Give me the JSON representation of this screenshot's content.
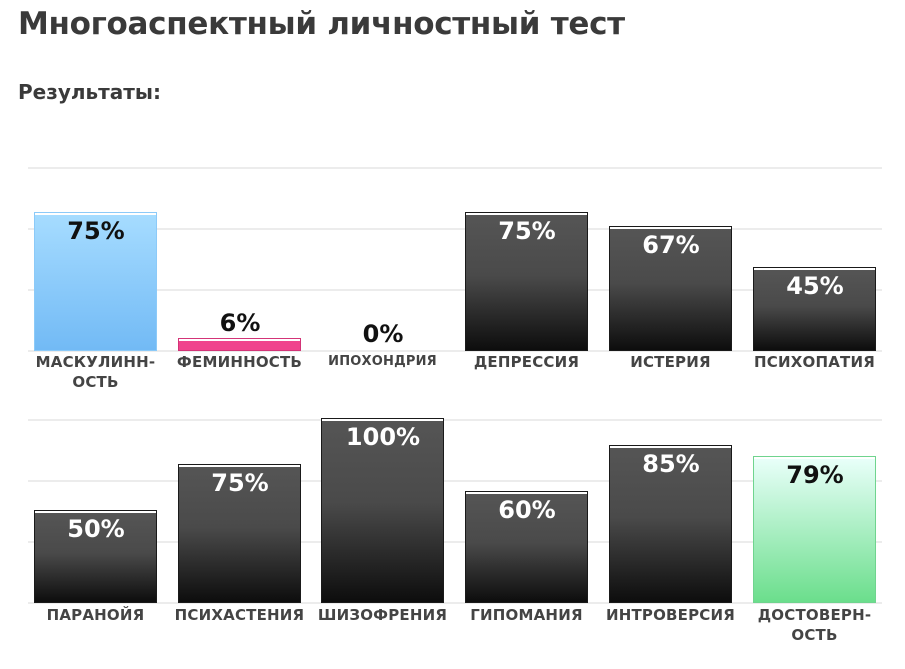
{
  "title": "Многоаспектный личностный тест",
  "subtitle": "Результаты:",
  "chart_data": {
    "type": "bar",
    "ylim": [
      0,
      100
    ],
    "grid": true,
    "rows": [
      {
        "categories": [
          "МАСКУЛИНН-\nОСТЬ",
          "ФЕМИННОСТЬ",
          "ИПОХОНДРИЯ",
          "ДЕПРЕССИЯ",
          "ИСТЕРИЯ",
          "ПСИХОПАТИЯ"
        ],
        "values": [
          75,
          6,
          0,
          75,
          67,
          45
        ],
        "value_labels": [
          "75%",
          "6%",
          "0%",
          "75%",
          "67%",
          "45%"
        ],
        "colors": [
          "#8ccaf8",
          "#f0448d",
          "#1a1a1a",
          "#1a1a1a",
          "#1a1a1a",
          "#1a1a1a"
        ]
      },
      {
        "categories": [
          "ПАРАНОЙЯ",
          "ПСИХАСТЕНИЯ",
          "ШИЗОФРЕНИЯ",
          "ГИПОМАНИЯ",
          "ИНТРОВЕРСИЯ",
          "ДОСТОВЕРН-\nОСТЬ"
        ],
        "values": [
          50,
          75,
          100,
          60,
          85,
          79
        ],
        "value_labels": [
          "50%",
          "75%",
          "100%",
          "60%",
          "85%",
          "79%"
        ],
        "colors": [
          "#1a1a1a",
          "#1a1a1a",
          "#1a1a1a",
          "#1a1a1a",
          "#1a1a1a",
          "#8ce8a6"
        ]
      }
    ]
  }
}
